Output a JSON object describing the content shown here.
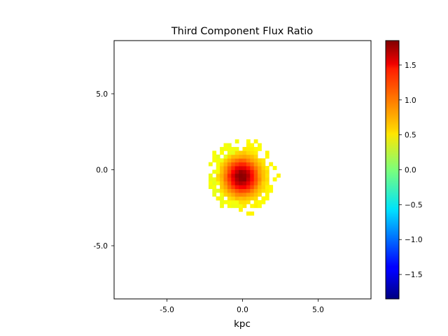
{
  "chart_data": {
    "type": "heatmap",
    "title": "Third Component Flux Ratio",
    "xlabel": "kpc",
    "ylabel": "",
    "xlim": [
      -8.5,
      8.5
    ],
    "ylim": [
      -8.5,
      8.5
    ],
    "x_ticks": [
      -5.0,
      0.0,
      5.0
    ],
    "x_tick_labels": [
      "-5.0",
      "0.0",
      "5.0"
    ],
    "y_ticks": [
      -5.0,
      0.0,
      5.0
    ],
    "y_tick_labels": [
      "-5.0",
      "0.0",
      "5.0"
    ],
    "grid": false,
    "pixel_size_kpc": 0.25,
    "blob": {
      "center": [
        -0.05,
        -0.45
      ],
      "peak_value": 1.85,
      "core_radius_kpc": 1.5,
      "extent_kpc": {
        "left": -2.4,
        "right": 2.4,
        "top": 1.9,
        "bottom": -2.6
      },
      "edge_value": 0.45,
      "scattered_pixels": [
        {
          "x": 0.875,
          "y": 1.875,
          "value": 0.5
        },
        {
          "x": 1.625,
          "y": 1.125,
          "value": 0.5
        },
        {
          "x": -1.375,
          "y": 1.125,
          "value": 0.45
        },
        {
          "x": 0.625,
          "y": -2.875,
          "value": 0.5
        },
        {
          "x": 0.375,
          "y": -2.875,
          "value": 0.5
        },
        {
          "x": -0.125,
          "y": -2.625,
          "value": 0.5
        },
        {
          "x": -1.625,
          "y": -1.875,
          "value": 0.5
        },
        {
          "x": 2.375,
          "y": -0.375,
          "value": 0.5
        }
      ]
    },
    "colorbar": {
      "colormap": "jet",
      "vmin": -1.85,
      "vmax": 1.85,
      "ticks": [
        1.5,
        1.0,
        0.5,
        0.0,
        -0.5,
        -1.0,
        -1.5
      ],
      "tick_labels": [
        "1.5",
        "1.0",
        "0.5",
        "0.0",
        "−0.5",
        "−1.0",
        "−1.5"
      ]
    }
  }
}
